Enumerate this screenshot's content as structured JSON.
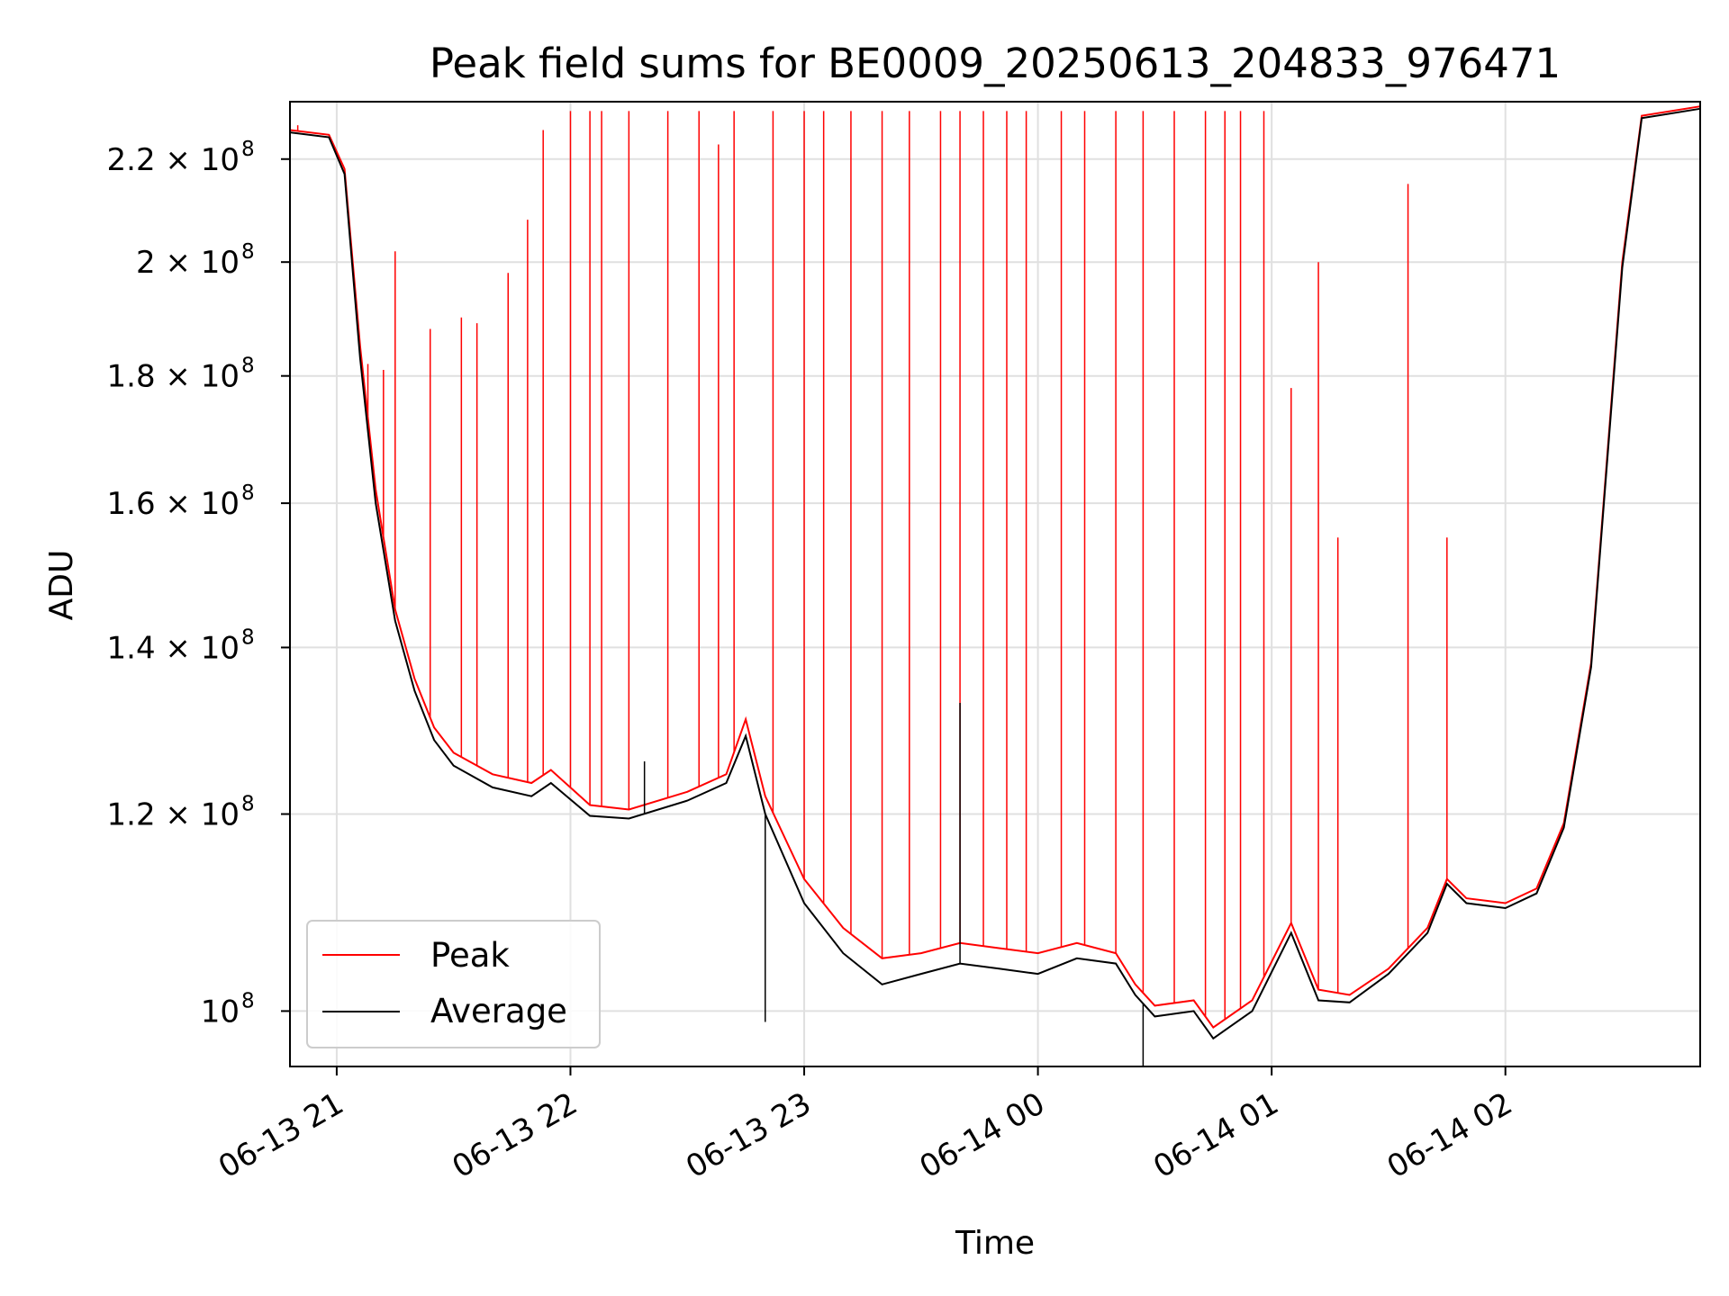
{
  "chart_data": {
    "type": "line",
    "title": "Peak field sums for BE0009_20250613_204833_976471",
    "xlabel": "Time",
    "ylabel": "ADU",
    "y_scale": "log",
    "grid": true,
    "legend_position": "lower-left",
    "xlim": [
      "2025-06-13 20:48",
      "2025-06-14 02:50"
    ],
    "ylim": [
      95000000,
      232000000
    ],
    "x_ticks": [
      {
        "value": "2025-06-13 21:00",
        "label": "06-13 21"
      },
      {
        "value": "2025-06-13 22:00",
        "label": "06-13 22"
      },
      {
        "value": "2025-06-13 23:00",
        "label": "06-13 23"
      },
      {
        "value": "2025-06-14 00:00",
        "label": "06-14 00"
      },
      {
        "value": "2025-06-14 01:00",
        "label": "06-14 01"
      },
      {
        "value": "2025-06-14 02:00",
        "label": "06-14 02"
      }
    ],
    "y_ticks": [
      {
        "value": 100000000,
        "base": "10",
        "exp": "8"
      },
      {
        "value": 120000000,
        "base": "1.2 × 10",
        "exp": "8"
      },
      {
        "value": 140000000,
        "base": "1.4 × 10",
        "exp": "8"
      },
      {
        "value": 160000000,
        "base": "1.6 × 10",
        "exp": "8"
      },
      {
        "value": 180000000,
        "base": "1.8 × 10",
        "exp": "8"
      },
      {
        "value": 200000000,
        "base": "2 × 10",
        "exp": "8"
      },
      {
        "value": 220000000,
        "base": "2.2 × 10",
        "exp": "8"
      }
    ],
    "series": [
      {
        "name": "Peak",
        "color": "#ff0000",
        "baseline": [
          [
            "2025-06-13 20:48",
            226000000
          ],
          [
            "2025-06-13 20:58",
            225000000
          ],
          [
            "2025-06-13 21:02",
            218000000
          ],
          [
            "2025-06-13 21:06",
            185000000
          ],
          [
            "2025-06-13 21:10",
            162000000
          ],
          [
            "2025-06-13 21:15",
            145000000
          ],
          [
            "2025-06-13 21:20",
            136000000
          ],
          [
            "2025-06-13 21:25",
            130000000
          ],
          [
            "2025-06-13 21:30",
            127000000
          ],
          [
            "2025-06-13 21:40",
            124500000
          ],
          [
            "2025-06-13 21:50",
            123500000
          ],
          [
            "2025-06-13 21:55",
            125000000
          ],
          [
            "2025-06-13 22:05",
            121000000
          ],
          [
            "2025-06-13 22:15",
            120500000
          ],
          [
            "2025-06-13 22:30",
            122500000
          ],
          [
            "2025-06-13 22:40",
            124500000
          ],
          [
            "2025-06-13 22:45",
            131000000
          ],
          [
            "2025-06-13 22:50",
            122000000
          ],
          [
            "2025-06-13 23:00",
            113000000
          ],
          [
            "2025-06-13 23:10",
            108000000
          ],
          [
            "2025-06-13 23:20",
            105000000
          ],
          [
            "2025-06-13 23:30",
            105500000
          ],
          [
            "2025-06-13 23:40",
            106500000
          ],
          [
            "2025-06-13 23:50",
            106000000
          ],
          [
            "2025-06-14 00:00",
            105500000
          ],
          [
            "2025-06-14 00:10",
            106500000
          ],
          [
            "2025-06-14 00:20",
            105500000
          ],
          [
            "2025-06-14 00:25",
            102500000
          ],
          [
            "2025-06-14 00:30",
            100500000
          ],
          [
            "2025-06-14 00:40",
            101000000
          ],
          [
            "2025-06-14 00:45",
            98500000
          ],
          [
            "2025-06-14 00:55",
            101000000
          ],
          [
            "2025-06-14 01:05",
            108500000
          ],
          [
            "2025-06-14 01:12",
            102000000
          ],
          [
            "2025-06-14 01:20",
            101500000
          ],
          [
            "2025-06-14 01:30",
            104000000
          ],
          [
            "2025-06-14 01:40",
            108000000
          ],
          [
            "2025-06-14 01:45",
            113000000
          ],
          [
            "2025-06-14 01:50",
            111000000
          ],
          [
            "2025-06-14 02:00",
            110500000
          ],
          [
            "2025-06-14 02:08",
            112000000
          ],
          [
            "2025-06-14 02:15",
            119000000
          ],
          [
            "2025-06-14 02:22",
            138000000
          ],
          [
            "2025-06-14 02:30",
            200000000
          ],
          [
            "2025-06-14 02:35",
            229000000
          ],
          [
            "2025-06-14 02:50",
            231000000
          ]
        ],
        "spikes": [
          [
            "2025-06-13 20:50",
            227000000
          ],
          [
            "2025-06-13 21:08",
            182000000
          ],
          [
            "2025-06-13 21:12",
            181000000
          ],
          [
            "2025-06-13 21:15",
            202000000
          ],
          [
            "2025-06-13 21:24",
            188000000
          ],
          [
            "2025-06-13 21:32",
            190000000
          ],
          [
            "2025-06-13 21:36",
            189000000
          ],
          [
            "2025-06-13 21:44",
            198000000
          ],
          [
            "2025-06-13 21:49",
            208000000
          ],
          [
            "2025-06-13 21:53",
            226000000
          ],
          [
            "2025-06-13 22:00",
            230000000
          ],
          [
            "2025-06-13 22:05",
            230000000
          ],
          [
            "2025-06-13 22:08",
            230000000
          ],
          [
            "2025-06-13 22:15",
            230000000
          ],
          [
            "2025-06-13 22:25",
            230000000
          ],
          [
            "2025-06-13 22:33",
            230000000
          ],
          [
            "2025-06-13 22:38",
            223000000
          ],
          [
            "2025-06-13 22:42",
            230000000
          ],
          [
            "2025-06-13 22:52",
            230000000
          ],
          [
            "2025-06-13 23:00",
            230000000
          ],
          [
            "2025-06-13 23:05",
            230000000
          ],
          [
            "2025-06-13 23:12",
            230000000
          ],
          [
            "2025-06-13 23:20",
            230000000
          ],
          [
            "2025-06-13 23:27",
            230000000
          ],
          [
            "2025-06-13 23:35",
            230000000
          ],
          [
            "2025-06-13 23:40",
            230000000
          ],
          [
            "2025-06-13 23:46",
            230000000
          ],
          [
            "2025-06-13 23:52",
            230000000
          ],
          [
            "2025-06-13 23:57",
            230000000
          ],
          [
            "2025-06-14 00:06",
            230000000
          ],
          [
            "2025-06-14 00:12",
            230000000
          ],
          [
            "2025-06-14 00:20",
            230000000
          ],
          [
            "2025-06-14 00:27",
            230000000
          ],
          [
            "2025-06-14 00:35",
            230000000
          ],
          [
            "2025-06-14 00:43",
            230000000
          ],
          [
            "2025-06-14 00:48",
            230000000
          ],
          [
            "2025-06-14 00:52",
            230000000
          ],
          [
            "2025-06-14 00:58",
            230000000
          ],
          [
            "2025-06-14 01:05",
            178000000
          ],
          [
            "2025-06-14 01:12",
            200000000
          ],
          [
            "2025-06-14 01:17",
            155000000
          ],
          [
            "2025-06-14 01:35",
            215000000
          ],
          [
            "2025-06-14 01:45",
            155000000
          ]
        ]
      },
      {
        "name": "Average",
        "color": "#000000",
        "baseline": [
          [
            "2025-06-13 20:48",
            225500000
          ],
          [
            "2025-06-13 20:58",
            224500000
          ],
          [
            "2025-06-13 21:02",
            217000000
          ],
          [
            "2025-06-13 21:06",
            183000000
          ],
          [
            "2025-06-13 21:10",
            160000000
          ],
          [
            "2025-06-13 21:15",
            143500000
          ],
          [
            "2025-06-13 21:20",
            134500000
          ],
          [
            "2025-06-13 21:25",
            128500000
          ],
          [
            "2025-06-13 21:30",
            125500000
          ],
          [
            "2025-06-13 21:40",
            123000000
          ],
          [
            "2025-06-13 21:50",
            122000000
          ],
          [
            "2025-06-13 21:55",
            123500000
          ],
          [
            "2025-06-13 22:05",
            119800000
          ],
          [
            "2025-06-13 22:15",
            119500000
          ],
          [
            "2025-06-13 22:30",
            121500000
          ],
          [
            "2025-06-13 22:40",
            123500000
          ],
          [
            "2025-06-13 22:45",
            129000000
          ],
          [
            "2025-06-13 22:50",
            120000000
          ],
          [
            "2025-06-13 23:00",
            110500000
          ],
          [
            "2025-06-13 23:10",
            105500000
          ],
          [
            "2025-06-13 23:20",
            102500000
          ],
          [
            "2025-06-13 23:30",
            103500000
          ],
          [
            "2025-06-13 23:40",
            104500000
          ],
          [
            "2025-06-13 23:50",
            104000000
          ],
          [
            "2025-06-14 00:00",
            103500000
          ],
          [
            "2025-06-14 00:10",
            105000000
          ],
          [
            "2025-06-14 00:20",
            104500000
          ],
          [
            "2025-06-14 00:25",
            101500000
          ],
          [
            "2025-06-14 00:30",
            99500000
          ],
          [
            "2025-06-14 00:40",
            100000000
          ],
          [
            "2025-06-14 00:45",
            97500000
          ],
          [
            "2025-06-14 00:55",
            100000000
          ],
          [
            "2025-06-14 01:05",
            107500000
          ],
          [
            "2025-06-14 01:12",
            101000000
          ],
          [
            "2025-06-14 01:20",
            100800000
          ],
          [
            "2025-06-14 01:30",
            103500000
          ],
          [
            "2025-06-14 01:40",
            107500000
          ],
          [
            "2025-06-14 01:45",
            112500000
          ],
          [
            "2025-06-14 01:50",
            110500000
          ],
          [
            "2025-06-14 02:00",
            110000000
          ],
          [
            "2025-06-14 02:08",
            111500000
          ],
          [
            "2025-06-14 02:15",
            118500000
          ],
          [
            "2025-06-14 02:22",
            137500000
          ],
          [
            "2025-06-14 02:30",
            199000000
          ],
          [
            "2025-06-14 02:35",
            228500000
          ],
          [
            "2025-06-14 02:50",
            230500000
          ]
        ],
        "spikes": [
          [
            "2025-06-13 22:19",
            126000000
          ],
          [
            "2025-06-13 22:50",
            99000000
          ],
          [
            "2025-06-13 23:40",
            133000000
          ],
          [
            "2025-06-14 00:27",
            94000000
          ]
        ]
      }
    ]
  }
}
